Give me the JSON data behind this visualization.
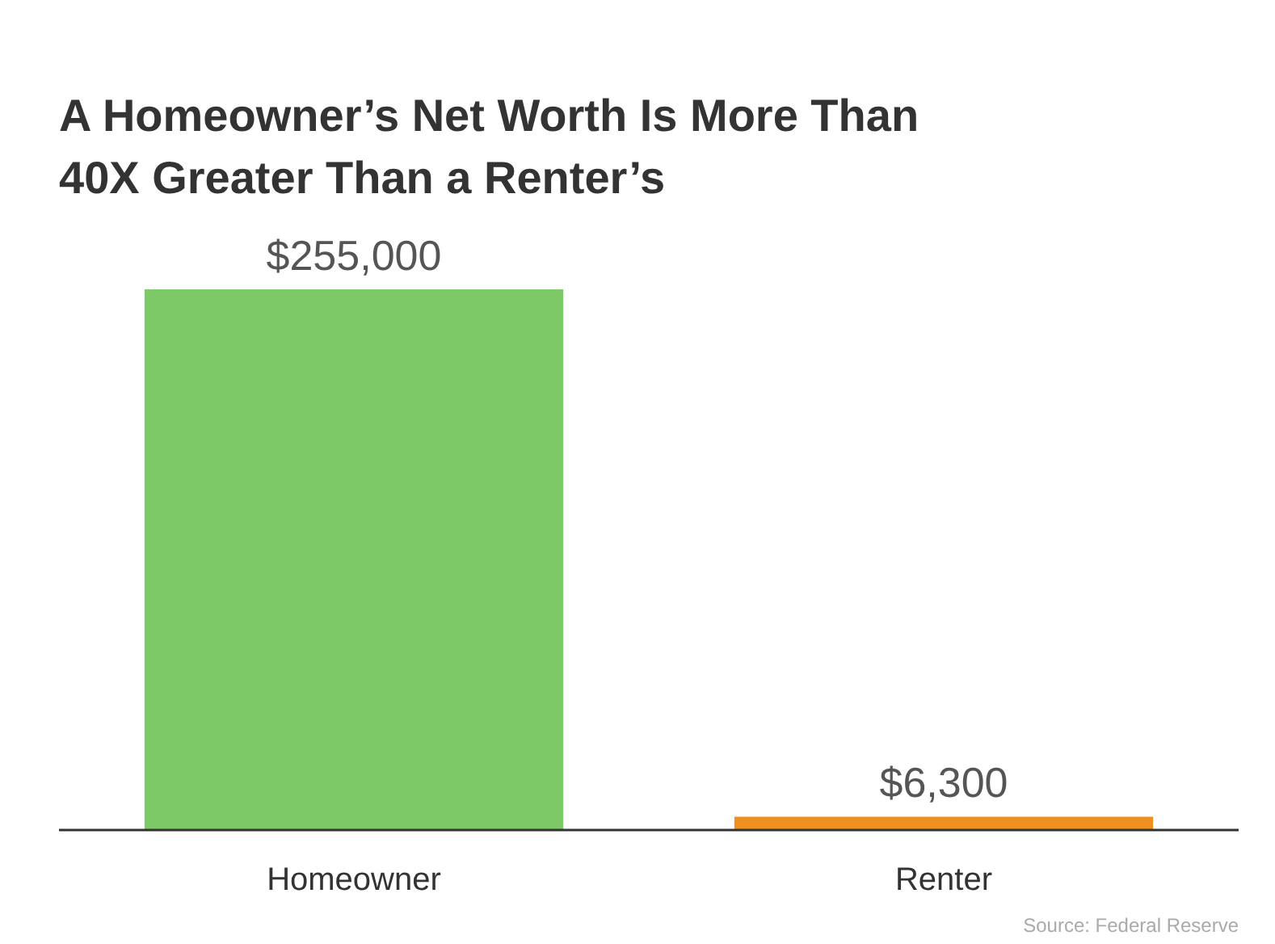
{
  "chart_data": {
    "type": "bar",
    "title": "A Homeowner’s Net Worth Is More Than 40X Greater Than a Renter’s",
    "categories": [
      "Homeowner",
      "Renter"
    ],
    "values": [
      255000,
      6300
    ],
    "colors": [
      "#7dc967",
      "#ef8f1f"
    ],
    "value_labels": [
      "$255,000",
      "$6,300"
    ],
    "grid": false,
    "annotations": [
      "Source: Federal Reserve"
    ]
  }
}
